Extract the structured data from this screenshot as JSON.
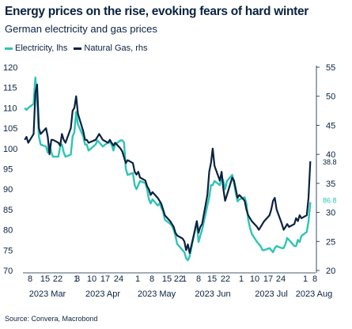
{
  "title": "Energy prices on the rise, evoking fears of hard winter",
  "subtitle": "German electricity and gas prices",
  "source": "Source: Convera, Macrobond",
  "colors": {
    "electricity": "#2ec4b6",
    "gas": "#0a2240",
    "text": "#0a2240"
  },
  "chart_data": {
    "type": "line",
    "dual_axis": true,
    "grid": false,
    "legend_placement": "top-left",
    "y_left": {
      "range": [
        70,
        120
      ],
      "ticks": [
        "70",
        "75",
        "80",
        "85",
        "90",
        "95",
        "100",
        "105",
        "110",
        "115",
        "120"
      ]
    },
    "y_right": {
      "range": [
        20,
        55
      ],
      "ticks": [
        "20",
        "25",
        "30",
        "35",
        "40",
        "45",
        "50",
        "55"
      ]
    },
    "x_tick_labels": [
      "8",
      "15",
      "22",
      "1",
      "3",
      "10",
      "17",
      "24",
      "1",
      "8",
      "15",
      "22",
      "1",
      "8",
      "15",
      "22",
      "1",
      "10",
      "17",
      "24",
      "3",
      "10",
      "17",
      "24",
      "1",
      "8"
    ],
    "month_labels": [
      "2023 Mar",
      "2023 Apr",
      "2023 May",
      "2023 Jun",
      "2023 Jul",
      "2023 Aug"
    ],
    "end_labels": {
      "gas": "38.8",
      "electricity": "86.8"
    },
    "series": [
      {
        "name": "Electricity, lhs",
        "axis": "left",
        "color": "#2ec4b6",
        "values": [
          [
            "2023-03-01",
            110.0
          ],
          [
            "2023-03-02",
            109.5
          ],
          [
            "2023-03-03",
            110.0
          ],
          [
            "2023-03-06",
            111.0
          ],
          [
            "2023-03-07",
            117.5
          ],
          [
            "2023-03-08",
            112.0
          ],
          [
            "2023-03-09",
            103.0
          ],
          [
            "2023-03-10",
            101.0
          ],
          [
            "2023-03-13",
            100.5
          ],
          [
            "2023-03-14",
            99.0
          ],
          [
            "2023-03-15",
            101.0
          ],
          [
            "2023-03-16",
            99.0
          ],
          [
            "2023-03-17",
            98.0
          ],
          [
            "2023-03-20",
            98.0
          ],
          [
            "2023-03-21",
            100.5
          ],
          [
            "2023-03-22",
            101.0
          ],
          [
            "2023-03-23",
            99.0
          ],
          [
            "2023-03-24",
            98.0
          ],
          [
            "2023-03-27",
            98.5
          ],
          [
            "2023-03-28",
            103.0
          ],
          [
            "2023-03-29",
            104.0
          ],
          [
            "2023-03-30",
            109.0
          ],
          [
            "2023-03-31",
            106.0
          ],
          [
            "2023-04-03",
            103.0
          ],
          [
            "2023-04-04",
            101.0
          ],
          [
            "2023-04-05",
            101.0
          ],
          [
            "2023-04-06",
            99.5
          ],
          [
            "2023-04-10",
            101.0
          ],
          [
            "2023-04-11",
            102.0
          ],
          [
            "2023-04-12",
            101.5
          ],
          [
            "2023-04-13",
            101.0
          ],
          [
            "2023-04-14",
            100.5
          ],
          [
            "2023-04-17",
            101.5
          ],
          [
            "2023-04-18",
            101.5
          ],
          [
            "2023-04-19",
            101.0
          ],
          [
            "2023-04-20",
            99.5
          ],
          [
            "2023-04-21",
            101.0
          ],
          [
            "2023-04-24",
            102.0
          ],
          [
            "2023-04-25",
            102.0
          ],
          [
            "2023-04-26",
            101.5
          ],
          [
            "2023-04-27",
            95.0
          ],
          [
            "2023-04-28",
            93.5
          ],
          [
            "2023-05-01",
            94.0
          ],
          [
            "2023-05-02",
            91.0
          ],
          [
            "2023-05-03",
            90.0
          ],
          [
            "2023-05-04",
            91.0
          ],
          [
            "2023-05-05",
            92.0
          ],
          [
            "2023-05-08",
            91.5
          ],
          [
            "2023-05-09",
            90.0
          ],
          [
            "2023-05-10",
            87.5
          ],
          [
            "2023-05-11",
            86.5
          ],
          [
            "2023-05-12",
            87.5
          ],
          [
            "2023-05-15",
            86.0
          ],
          [
            "2023-05-16",
            86.5
          ],
          [
            "2023-05-17",
            85.5
          ],
          [
            "2023-05-18",
            84.5
          ],
          [
            "2023-05-19",
            82.5
          ],
          [
            "2023-05-22",
            81.5
          ],
          [
            "2023-05-23",
            81.0
          ],
          [
            "2023-05-24",
            80.0
          ],
          [
            "2023-05-25",
            78.5
          ],
          [
            "2023-05-26",
            76.5
          ],
          [
            "2023-05-29",
            75.0
          ],
          [
            "2023-05-30",
            74.5
          ],
          [
            "2023-05-31",
            73.0
          ],
          [
            "2023-06-01",
            72.5
          ],
          [
            "2023-06-02",
            73.5
          ],
          [
            "2023-06-05",
            80.0
          ],
          [
            "2023-06-06",
            82.0
          ],
          [
            "2023-06-07",
            77.0
          ],
          [
            "2023-06-08",
            78.5
          ],
          [
            "2023-06-09",
            80.0
          ],
          [
            "2023-06-12",
            86.0
          ],
          [
            "2023-06-13",
            88.0
          ],
          [
            "2023-06-14",
            91.0
          ],
          [
            "2023-06-15",
            91.0
          ],
          [
            "2023-06-16",
            92.0
          ],
          [
            "2023-06-19",
            91.0
          ],
          [
            "2023-06-20",
            93.0
          ],
          [
            "2023-06-21",
            92.0
          ],
          [
            "2023-06-22",
            90.0
          ],
          [
            "2023-06-23",
            92.0
          ],
          [
            "2023-06-26",
            93.5
          ],
          [
            "2023-06-27",
            91.5
          ],
          [
            "2023-06-28",
            89.0
          ],
          [
            "2023-06-29",
            87.0
          ],
          [
            "2023-06-30",
            87.5
          ],
          [
            "2023-07-03",
            88.0
          ],
          [
            "2023-07-04",
            86.5
          ],
          [
            "2023-07-05",
            82.5
          ],
          [
            "2023-07-06",
            80.5
          ],
          [
            "2023-07-07",
            79.0
          ],
          [
            "2023-07-10",
            77.0
          ],
          [
            "2023-07-11",
            76.5
          ],
          [
            "2023-07-12",
            76.0
          ],
          [
            "2023-07-13",
            75.0
          ],
          [
            "2023-07-14",
            75.0
          ],
          [
            "2023-07-17",
            75.5
          ],
          [
            "2023-07-18",
            75.0
          ],
          [
            "2023-07-19",
            74.5
          ],
          [
            "2023-07-20",
            75.5
          ],
          [
            "2023-07-21",
            76.0
          ],
          [
            "2023-07-24",
            75.5
          ],
          [
            "2023-07-25",
            75.5
          ],
          [
            "2023-07-26",
            76.5
          ],
          [
            "2023-07-27",
            78.0
          ],
          [
            "2023-07-28",
            77.5
          ],
          [
            "2023-07-31",
            76.0
          ],
          [
            "2023-08-01",
            76.0
          ],
          [
            "2023-08-02",
            77.5
          ],
          [
            "2023-08-03",
            77.0
          ],
          [
            "2023-08-04",
            78.5
          ],
          [
            "2023-08-07",
            79.5
          ],
          [
            "2023-08-08",
            82.0
          ],
          [
            "2023-08-09",
            86.8
          ]
        ]
      },
      {
        "name": "Natural Gas, rhs",
        "axis": "right",
        "color": "#0a2240",
        "values": [
          [
            "2023-03-01",
            42.5
          ],
          [
            "2023-03-02",
            43.0
          ],
          [
            "2023-03-03",
            42.0
          ],
          [
            "2023-03-06",
            43.5
          ],
          [
            "2023-03-07",
            50.5
          ],
          [
            "2023-03-08",
            52.0
          ],
          [
            "2023-03-09",
            44.5
          ],
          [
            "2023-03-10",
            43.5
          ],
          [
            "2023-03-13",
            44.5
          ],
          [
            "2023-03-14",
            43.0
          ],
          [
            "2023-03-15",
            40.0
          ],
          [
            "2023-03-16",
            42.5
          ],
          [
            "2023-03-17",
            42.5
          ],
          [
            "2023-03-20",
            42.0
          ],
          [
            "2023-03-21",
            41.5
          ],
          [
            "2023-03-22",
            43.5
          ],
          [
            "2023-03-23",
            42.5
          ],
          [
            "2023-03-24",
            42.0
          ],
          [
            "2023-03-27",
            44.5
          ],
          [
            "2023-03-28",
            47.5
          ],
          [
            "2023-03-29",
            48.0
          ],
          [
            "2023-03-30",
            50.0
          ],
          [
            "2023-03-31",
            47.0
          ],
          [
            "2023-04-03",
            44.0
          ],
          [
            "2023-04-04",
            42.5
          ],
          [
            "2023-04-05",
            42.5
          ],
          [
            "2023-04-06",
            42.0
          ],
          [
            "2023-04-10",
            42.5
          ],
          [
            "2023-04-11",
            43.0
          ],
          [
            "2023-04-12",
            43.5
          ],
          [
            "2023-04-13",
            43.0
          ],
          [
            "2023-04-14",
            42.5
          ],
          [
            "2023-04-17",
            42.0
          ],
          [
            "2023-04-18",
            42.5
          ],
          [
            "2023-04-19",
            42.0
          ],
          [
            "2023-04-20",
            41.5
          ],
          [
            "2023-04-21",
            42.0
          ],
          [
            "2023-04-24",
            41.0
          ],
          [
            "2023-04-25",
            40.5
          ],
          [
            "2023-04-26",
            39.5
          ],
          [
            "2023-04-27",
            38.5
          ],
          [
            "2023-04-28",
            39.0
          ],
          [
            "2023-05-01",
            38.5
          ],
          [
            "2023-05-02",
            37.0
          ],
          [
            "2023-05-03",
            36.5
          ],
          [
            "2023-05-04",
            37.0
          ],
          [
            "2023-05-05",
            36.0
          ],
          [
            "2023-05-08",
            35.5
          ],
          [
            "2023-05-09",
            34.5
          ],
          [
            "2023-05-10",
            34.0
          ],
          [
            "2023-05-11",
            33.0
          ],
          [
            "2023-05-12",
            33.5
          ],
          [
            "2023-05-15",
            32.5
          ],
          [
            "2023-05-16",
            32.0
          ],
          [
            "2023-05-17",
            31.5
          ],
          [
            "2023-05-18",
            30.5
          ],
          [
            "2023-05-19",
            29.5
          ],
          [
            "2023-05-22",
            28.5
          ],
          [
            "2023-05-23",
            28.0
          ],
          [
            "2023-05-24",
            27.5
          ],
          [
            "2023-05-25",
            26.5
          ],
          [
            "2023-05-26",
            26.0
          ],
          [
            "2023-05-29",
            25.5
          ],
          [
            "2023-05-30",
            25.0
          ],
          [
            "2023-05-31",
            23.5
          ],
          [
            "2023-06-01",
            24.5
          ],
          [
            "2023-06-02",
            23.0
          ],
          [
            "2023-06-05",
            27.0
          ],
          [
            "2023-06-06",
            28.5
          ],
          [
            "2023-06-07",
            26.5
          ],
          [
            "2023-06-08",
            27.5
          ],
          [
            "2023-06-09",
            28.0
          ],
          [
            "2023-06-12",
            33.0
          ],
          [
            "2023-06-13",
            37.0
          ],
          [
            "2023-06-14",
            38.5
          ],
          [
            "2023-06-15",
            41.0
          ],
          [
            "2023-06-16",
            38.0
          ],
          [
            "2023-06-19",
            35.5
          ],
          [
            "2023-06-20",
            37.0
          ],
          [
            "2023-06-21",
            34.0
          ],
          [
            "2023-06-22",
            32.0
          ],
          [
            "2023-06-23",
            33.0
          ],
          [
            "2023-06-26",
            36.0
          ],
          [
            "2023-06-27",
            35.5
          ],
          [
            "2023-06-28",
            34.0
          ],
          [
            "2023-06-29",
            32.5
          ],
          [
            "2023-06-30",
            33.0
          ],
          [
            "2023-07-03",
            32.0
          ],
          [
            "2023-07-04",
            30.5
          ],
          [
            "2023-07-05",
            29.5
          ],
          [
            "2023-07-06",
            29.0
          ],
          [
            "2023-07-07",
            28.5
          ],
          [
            "2023-07-10",
            27.5
          ],
          [
            "2023-07-11",
            27.0
          ],
          [
            "2023-07-12",
            27.5
          ],
          [
            "2023-07-13",
            28.0
          ],
          [
            "2023-07-14",
            28.5
          ],
          [
            "2023-07-17",
            29.5
          ],
          [
            "2023-07-18",
            30.5
          ],
          [
            "2023-07-19",
            32.0
          ],
          [
            "2023-07-20",
            32.5
          ],
          [
            "2023-07-21",
            30.5
          ],
          [
            "2023-07-24",
            28.0
          ],
          [
            "2023-07-25",
            27.0
          ],
          [
            "2023-07-26",
            27.5
          ],
          [
            "2023-07-27",
            28.0
          ],
          [
            "2023-07-28",
            27.5
          ],
          [
            "2023-07-31",
            28.0
          ],
          [
            "2023-08-01",
            29.0
          ],
          [
            "2023-08-02",
            28.5
          ],
          [
            "2023-08-03",
            29.5
          ],
          [
            "2023-08-04",
            29.0
          ],
          [
            "2023-08-07",
            29.5
          ],
          [
            "2023-08-08",
            32.5
          ],
          [
            "2023-08-09",
            38.8
          ]
        ]
      }
    ]
  }
}
